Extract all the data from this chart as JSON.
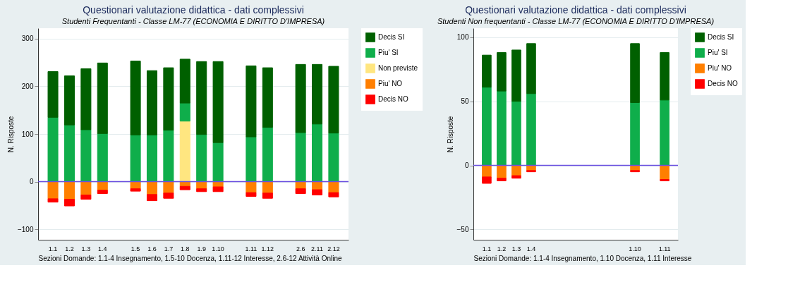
{
  "chart_data": [
    {
      "type": "bar",
      "title": "Questionari valutazione didattica - dati complessivi",
      "subtitle": "Studenti Frequentanti - Classe LM-77 (ECONOMIA E DIRITTO D'IMPRESA)",
      "ylabel": "N. Risposte",
      "xlabel": "Sezioni Domande: 1.1-4 Insegnamento, 1.5-10 Docenza, 1.11-12 Interesse, 2.6-12 Attività Online",
      "stacked": true,
      "legend": "right",
      "grid": "y",
      "categories": [
        "1.1",
        "1.2",
        "1.3",
        "1.4",
        null,
        "1.5",
        "1.6",
        "1.7",
        "1.8",
        "1.9",
        "1.10",
        null,
        "1.11",
        "1.12",
        null,
        "2.6",
        "2.11",
        "2.12"
      ],
      "ylim": [
        -122,
        322
      ],
      "yticks": [
        -100,
        0,
        100,
        200,
        300
      ],
      "ref_lines": [
        {
          "axis": "y",
          "value": 0,
          "color": "#6a4fe0"
        }
      ],
      "series": [
        {
          "name": "Non previste",
          "color": "#ffe680",
          "values": [
            null,
            null,
            null,
            null,
            null,
            null,
            null,
            null,
            127,
            null,
            null,
            null,
            null,
            null,
            null,
            null,
            null,
            null
          ]
        },
        {
          "name": "Piu' SI",
          "color": "#0fae4b",
          "values": [
            135,
            119,
            109,
            101,
            null,
            98,
            98,
            108,
            38,
            99,
            82,
            null,
            94,
            114,
            null,
            103,
            121,
            102
          ]
        },
        {
          "name": "Decis SI",
          "color": "#006000",
          "values": [
            96,
            103,
            128,
            148,
            null,
            155,
            135,
            131,
            92,
            153,
            170,
            null,
            149,
            125,
            null,
            143,
            125,
            140
          ]
        },
        {
          "name": "Piu' NO",
          "color": "#ff7f00",
          "values": [
            -36,
            -37,
            -28,
            -18,
            null,
            -15,
            -27,
            -24,
            -10,
            -15,
            -11,
            null,
            -23,
            -24,
            null,
            -15,
            -17,
            -23
          ]
        },
        {
          "name": "Decis NO",
          "color": "#ff0000",
          "values": [
            -7,
            -14,
            -9,
            -7,
            null,
            -5,
            -13,
            -11,
            -7,
            -6,
            -10,
            null,
            -8,
            -11,
            null,
            -10,
            -11,
            -9
          ]
        }
      ]
    },
    {
      "type": "bar",
      "title": "Questionari valutazione didattica - dati complessivi",
      "subtitle": "Studenti Non frequentanti - Classe LM-77 (ECONOMIA E DIRITTO D'IMPRESA)",
      "ylabel": "N. Risposte",
      "xlabel": "Sezioni Domande: 1.1-4 Insegnamento, 1.10 Docenza, 1.11 Interesse",
      "stacked": true,
      "legend": "right",
      "grid": "y",
      "categories": [
        "1.1",
        "1.2",
        "1.3",
        "1.4",
        null,
        null,
        null,
        null,
        null,
        null,
        "1.10",
        null,
        "1.11"
      ],
      "ylim": [
        -58,
        107
      ],
      "yticks": [
        -50,
        0,
        50,
        100
      ],
      "ref_lines": [
        {
          "axis": "y",
          "value": 0,
          "color": "#6a4fe0"
        }
      ],
      "series": [
        {
          "name": "Piu' SI",
          "color": "#0fae4b",
          "values": [
            61,
            58,
            50,
            56,
            null,
            null,
            null,
            null,
            null,
            null,
            49,
            null,
            51
          ]
        },
        {
          "name": "Decis SI",
          "color": "#006000",
          "values": [
            25,
            30,
            40,
            39,
            null,
            null,
            null,
            null,
            null,
            null,
            46,
            null,
            37
          ]
        },
        {
          "name": "Piu' NO",
          "color": "#ff7f00",
          "values": [
            -9,
            -10,
            -8,
            -4,
            null,
            null,
            null,
            null,
            null,
            null,
            -4,
            null,
            -11
          ]
        },
        {
          "name": "Decis NO",
          "color": "#ff0000",
          "values": [
            -5,
            -2,
            -2,
            -1,
            null,
            null,
            null,
            null,
            null,
            null,
            -1,
            null,
            -1
          ]
        }
      ]
    }
  ]
}
